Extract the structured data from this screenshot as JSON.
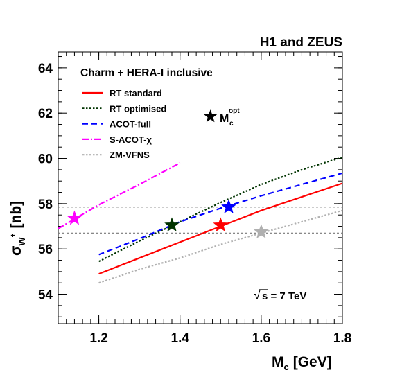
{
  "chart_data": {
    "type": "line",
    "corner_label": "H1 and ZEUS",
    "panel_title": "Charm + HERA-I inclusive",
    "ylabel": {
      "base": "σ",
      "sub": "W",
      "sup": "+",
      "unit": "[nb]"
    },
    "xlabel": {
      "base": "M",
      "sub": "c",
      "unit": "[GeV]"
    },
    "xlim": [
      1.1,
      1.8
    ],
    "ylim": [
      52.7,
      64.7
    ],
    "x_ticks": [
      1.2,
      1.4,
      1.6,
      1.8
    ],
    "x_tick_labels": [
      "1.2",
      "1.4",
      "1.6",
      "1.8"
    ],
    "y_ticks": [
      54,
      56,
      58,
      60,
      62,
      64
    ],
    "y_tick_labels": [
      "54",
      "56",
      "58",
      "60",
      "62",
      "64"
    ],
    "grid": false,
    "legend_position": "top-left",
    "series": [
      {
        "name": "RT standard",
        "color": "#ff0000",
        "dash": "solid",
        "x": [
          1.2,
          1.3,
          1.4,
          1.5,
          1.6,
          1.7,
          1.8
        ],
        "y": [
          54.9,
          55.6,
          56.3,
          57.0,
          57.7,
          58.3,
          58.9
        ],
        "marker": {
          "x": 1.5,
          "y": 57.05
        }
      },
      {
        "name": "RT optimised",
        "color": "#003300",
        "dash": "dotted",
        "x": [
          1.2,
          1.3,
          1.4,
          1.5,
          1.6,
          1.7,
          1.8
        ],
        "y": [
          55.45,
          56.35,
          57.2,
          58.05,
          58.85,
          59.5,
          60.05
        ],
        "marker": {
          "x": 1.38,
          "y": 57.05
        }
      },
      {
        "name": "ACOT-full",
        "color": "#0000ff",
        "dash": "dashed",
        "x": [
          1.2,
          1.3,
          1.4,
          1.5,
          1.6,
          1.7,
          1.8
        ],
        "y": [
          55.75,
          56.45,
          57.2,
          57.8,
          58.35,
          58.85,
          59.35
        ],
        "marker": {
          "x": 1.52,
          "y": 57.85
        }
      },
      {
        "name": "S-ACOT-χ",
        "color": "#ff00ff",
        "dash": "dashdot",
        "x": [
          1.1,
          1.2,
          1.3,
          1.4
        ],
        "y": [
          56.9,
          57.95,
          58.85,
          59.8
        ],
        "marker": {
          "x": 1.14,
          "y": 57.35
        }
      },
      {
        "name": "ZM-VFNS",
        "color": "#b0b0b0",
        "dash": "dotted",
        "x": [
          1.2,
          1.3,
          1.4,
          1.5,
          1.6,
          1.7,
          1.8
        ],
        "y": [
          54.5,
          55.1,
          55.6,
          56.2,
          56.7,
          57.2,
          57.7
        ],
        "marker": {
          "x": 1.6,
          "y": 56.75
        }
      }
    ],
    "reference_lines_y": [
      57.85,
      56.7
    ],
    "marker_legend": {
      "base": "M",
      "sub": "c",
      "sup": "opt",
      "x": 1.475,
      "y": 61.85
    },
    "annotation": {
      "sqrt": "√",
      "text": "s = 7 TeV"
    }
  }
}
